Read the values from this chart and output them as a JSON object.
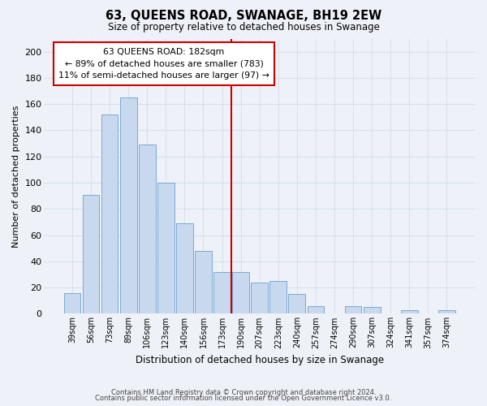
{
  "title": "63, QUEENS ROAD, SWANAGE, BH19 2EW",
  "subtitle": "Size of property relative to detached houses in Swanage",
  "xlabel": "Distribution of detached houses by size in Swanage",
  "ylabel": "Number of detached properties",
  "categories": [
    "39sqm",
    "56sqm",
    "73sqm",
    "89sqm",
    "106sqm",
    "123sqm",
    "140sqm",
    "156sqm",
    "173sqm",
    "190sqm",
    "207sqm",
    "223sqm",
    "240sqm",
    "257sqm",
    "274sqm",
    "290sqm",
    "307sqm",
    "324sqm",
    "341sqm",
    "357sqm",
    "374sqm"
  ],
  "values": [
    16,
    91,
    152,
    165,
    129,
    100,
    69,
    48,
    32,
    32,
    24,
    25,
    15,
    6,
    0,
    6,
    5,
    0,
    3,
    0,
    3
  ],
  "bar_color": "#c8d8ee",
  "bar_edge_color": "#7baad4",
  "vline_color": "#cc0000",
  "annotation_title": "63 QUEENS ROAD: 182sqm",
  "annotation_line1": "← 89% of detached houses are smaller (783)",
  "annotation_line2": "11% of semi-detached houses are larger (97) →",
  "annotation_box_edge": "#cc0000",
  "ylim": [
    0,
    210
  ],
  "yticks": [
    0,
    20,
    40,
    60,
    80,
    100,
    120,
    140,
    160,
    180,
    200
  ],
  "footer1": "Contains HM Land Registry data © Crown copyright and database right 2024.",
  "footer2": "Contains public sector information licensed under the Open Government Licence v3.0.",
  "bg_color": "#eef2f8",
  "grid_color": "#d8e0ec"
}
